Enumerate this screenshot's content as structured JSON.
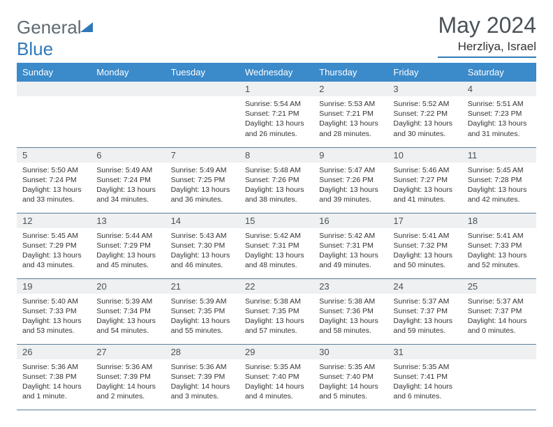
{
  "logo": {
    "part1": "General",
    "part2": "Blue"
  },
  "title": "May 2024",
  "location": "Herzliya, Israel",
  "colors": {
    "accent": "#3b8aca",
    "header_text": "#ffffff",
    "rule": "#5a7d99",
    "daybar": "#eef0f1",
    "text": "#333333",
    "title_text": "#4a5258"
  },
  "weekdays": [
    "Sunday",
    "Monday",
    "Tuesday",
    "Wednesday",
    "Thursday",
    "Friday",
    "Saturday"
  ],
  "weeks": [
    [
      {
        "day": "",
        "sunrise": "",
        "sunset": "",
        "daylight": ""
      },
      {
        "day": "",
        "sunrise": "",
        "sunset": "",
        "daylight": ""
      },
      {
        "day": "",
        "sunrise": "",
        "sunset": "",
        "daylight": ""
      },
      {
        "day": "1",
        "sunrise": "Sunrise: 5:54 AM",
        "sunset": "Sunset: 7:21 PM",
        "daylight": "Daylight: 13 hours and 26 minutes."
      },
      {
        "day": "2",
        "sunrise": "Sunrise: 5:53 AM",
        "sunset": "Sunset: 7:21 PM",
        "daylight": "Daylight: 13 hours and 28 minutes."
      },
      {
        "day": "3",
        "sunrise": "Sunrise: 5:52 AM",
        "sunset": "Sunset: 7:22 PM",
        "daylight": "Daylight: 13 hours and 30 minutes."
      },
      {
        "day": "4",
        "sunrise": "Sunrise: 5:51 AM",
        "sunset": "Sunset: 7:23 PM",
        "daylight": "Daylight: 13 hours and 31 minutes."
      }
    ],
    [
      {
        "day": "5",
        "sunrise": "Sunrise: 5:50 AM",
        "sunset": "Sunset: 7:24 PM",
        "daylight": "Daylight: 13 hours and 33 minutes."
      },
      {
        "day": "6",
        "sunrise": "Sunrise: 5:49 AM",
        "sunset": "Sunset: 7:24 PM",
        "daylight": "Daylight: 13 hours and 34 minutes."
      },
      {
        "day": "7",
        "sunrise": "Sunrise: 5:49 AM",
        "sunset": "Sunset: 7:25 PM",
        "daylight": "Daylight: 13 hours and 36 minutes."
      },
      {
        "day": "8",
        "sunrise": "Sunrise: 5:48 AM",
        "sunset": "Sunset: 7:26 PM",
        "daylight": "Daylight: 13 hours and 38 minutes."
      },
      {
        "day": "9",
        "sunrise": "Sunrise: 5:47 AM",
        "sunset": "Sunset: 7:26 PM",
        "daylight": "Daylight: 13 hours and 39 minutes."
      },
      {
        "day": "10",
        "sunrise": "Sunrise: 5:46 AM",
        "sunset": "Sunset: 7:27 PM",
        "daylight": "Daylight: 13 hours and 41 minutes."
      },
      {
        "day": "11",
        "sunrise": "Sunrise: 5:45 AM",
        "sunset": "Sunset: 7:28 PM",
        "daylight": "Daylight: 13 hours and 42 minutes."
      }
    ],
    [
      {
        "day": "12",
        "sunrise": "Sunrise: 5:45 AM",
        "sunset": "Sunset: 7:29 PM",
        "daylight": "Daylight: 13 hours and 43 minutes."
      },
      {
        "day": "13",
        "sunrise": "Sunrise: 5:44 AM",
        "sunset": "Sunset: 7:29 PM",
        "daylight": "Daylight: 13 hours and 45 minutes."
      },
      {
        "day": "14",
        "sunrise": "Sunrise: 5:43 AM",
        "sunset": "Sunset: 7:30 PM",
        "daylight": "Daylight: 13 hours and 46 minutes."
      },
      {
        "day": "15",
        "sunrise": "Sunrise: 5:42 AM",
        "sunset": "Sunset: 7:31 PM",
        "daylight": "Daylight: 13 hours and 48 minutes."
      },
      {
        "day": "16",
        "sunrise": "Sunrise: 5:42 AM",
        "sunset": "Sunset: 7:31 PM",
        "daylight": "Daylight: 13 hours and 49 minutes."
      },
      {
        "day": "17",
        "sunrise": "Sunrise: 5:41 AM",
        "sunset": "Sunset: 7:32 PM",
        "daylight": "Daylight: 13 hours and 50 minutes."
      },
      {
        "day": "18",
        "sunrise": "Sunrise: 5:41 AM",
        "sunset": "Sunset: 7:33 PM",
        "daylight": "Daylight: 13 hours and 52 minutes."
      }
    ],
    [
      {
        "day": "19",
        "sunrise": "Sunrise: 5:40 AM",
        "sunset": "Sunset: 7:33 PM",
        "daylight": "Daylight: 13 hours and 53 minutes."
      },
      {
        "day": "20",
        "sunrise": "Sunrise: 5:39 AM",
        "sunset": "Sunset: 7:34 PM",
        "daylight": "Daylight: 13 hours and 54 minutes."
      },
      {
        "day": "21",
        "sunrise": "Sunrise: 5:39 AM",
        "sunset": "Sunset: 7:35 PM",
        "daylight": "Daylight: 13 hours and 55 minutes."
      },
      {
        "day": "22",
        "sunrise": "Sunrise: 5:38 AM",
        "sunset": "Sunset: 7:35 PM",
        "daylight": "Daylight: 13 hours and 57 minutes."
      },
      {
        "day": "23",
        "sunrise": "Sunrise: 5:38 AM",
        "sunset": "Sunset: 7:36 PM",
        "daylight": "Daylight: 13 hours and 58 minutes."
      },
      {
        "day": "24",
        "sunrise": "Sunrise: 5:37 AM",
        "sunset": "Sunset: 7:37 PM",
        "daylight": "Daylight: 13 hours and 59 minutes."
      },
      {
        "day": "25",
        "sunrise": "Sunrise: 5:37 AM",
        "sunset": "Sunset: 7:37 PM",
        "daylight": "Daylight: 14 hours and 0 minutes."
      }
    ],
    [
      {
        "day": "26",
        "sunrise": "Sunrise: 5:36 AM",
        "sunset": "Sunset: 7:38 PM",
        "daylight": "Daylight: 14 hours and 1 minute."
      },
      {
        "day": "27",
        "sunrise": "Sunrise: 5:36 AM",
        "sunset": "Sunset: 7:39 PM",
        "daylight": "Daylight: 14 hours and 2 minutes."
      },
      {
        "day": "28",
        "sunrise": "Sunrise: 5:36 AM",
        "sunset": "Sunset: 7:39 PM",
        "daylight": "Daylight: 14 hours and 3 minutes."
      },
      {
        "day": "29",
        "sunrise": "Sunrise: 5:35 AM",
        "sunset": "Sunset: 7:40 PM",
        "daylight": "Daylight: 14 hours and 4 minutes."
      },
      {
        "day": "30",
        "sunrise": "Sunrise: 5:35 AM",
        "sunset": "Sunset: 7:40 PM",
        "daylight": "Daylight: 14 hours and 5 minutes."
      },
      {
        "day": "31",
        "sunrise": "Sunrise: 5:35 AM",
        "sunset": "Sunset: 7:41 PM",
        "daylight": "Daylight: 14 hours and 6 minutes."
      },
      {
        "day": "",
        "sunrise": "",
        "sunset": "",
        "daylight": ""
      }
    ]
  ]
}
